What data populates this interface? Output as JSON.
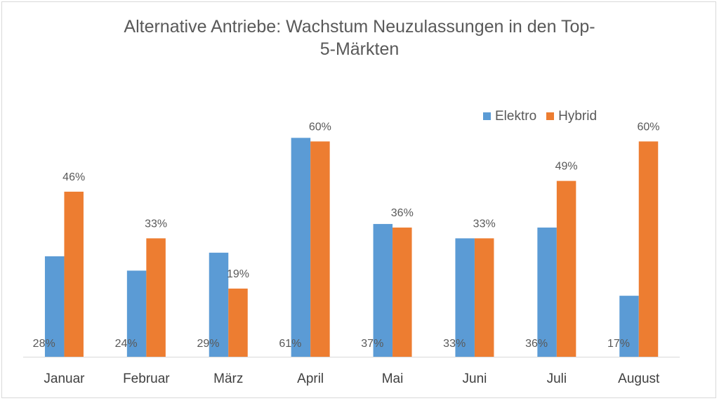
{
  "chart_data": {
    "type": "bar",
    "title": "Alternative Antriebe: Wachstum Neuzulassungen in den Top-5-Märkten",
    "title_lines": [
      "Alternative Antriebe: Wachstum Neuzulassungen in den Top-",
      "5-Märkten"
    ],
    "categories": [
      "Januar",
      "Februar",
      "März",
      "April",
      "Mai",
      "Juni",
      "Juli",
      "August"
    ],
    "series": [
      {
        "name": "Elektro",
        "color": "#5b9bd5",
        "values": [
          28,
          24,
          29,
          61,
          37,
          33,
          36,
          17
        ],
        "labels": [
          "28%",
          "24%",
          "29%",
          "61%",
          "37%",
          "33%",
          "36%",
          "17%"
        ]
      },
      {
        "name": "Hybrid",
        "color": "#ed7d31",
        "values": [
          46,
          33,
          19,
          60,
          36,
          33,
          49,
          60
        ],
        "labels": [
          "46%",
          "33%",
          "19%",
          "60%",
          "36%",
          "33%",
          "49%",
          "60%"
        ]
      }
    ],
    "ylim": [
      0,
      65
    ],
    "xlabel": "",
    "ylabel": "",
    "grid": false,
    "legend": "top-right"
  }
}
